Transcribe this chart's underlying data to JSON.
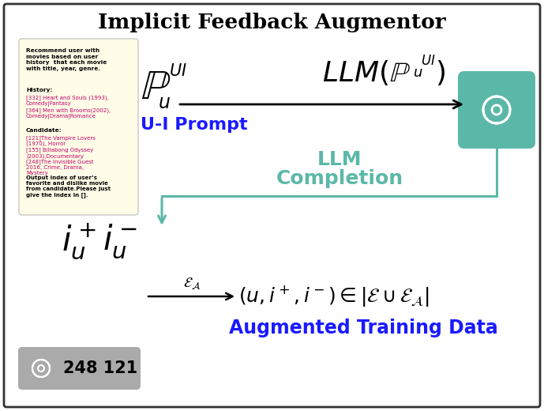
{
  "title": "Implicit Feedback Augmentor",
  "bg_color": "#ffffff",
  "border_color": "#333333",
  "prompt_box_color": "#fffde7",
  "history_label": "History:",
  "history_items": "[332] Heart and Souls (1993),\nComedy|Fantasy\n[364] Men with Brooms(2002),\nComedy|Drama|Romance",
  "candidate_label": "Candidate:",
  "candidate_items": "[121]The Vampire Lovers\n(1970), Horror\n[155] Billabong Odyssey\n(2003),Documentary\n[248]The Invisible Guest\n2016, Crime, Drama,\nMystery",
  "instruction_text": "Recommend user with\nmovies based on user\nhistory  that each movie\nwith title, year, genre.",
  "output_text": "Output index of user’s\nfavorite and dislike movie\nfrom candidate.Please just\ngive the index in [].",
  "ui_prompt_label": "U-I Prompt",
  "ui_prompt_color": "#1a1aff",
  "llm_label": "LLM",
  "completion_label": "Completion",
  "llm_color": "#5bb8a8",
  "augmented_label": "Augmented Training Data",
  "augmented_color": "#1a1aff",
  "numbers_label": "248 121",
  "openai_color": "#5bb8a8",
  "openai_small_bg": "#aaaaaa",
  "arrow_color": "#000000",
  "line_lw": 2.0
}
